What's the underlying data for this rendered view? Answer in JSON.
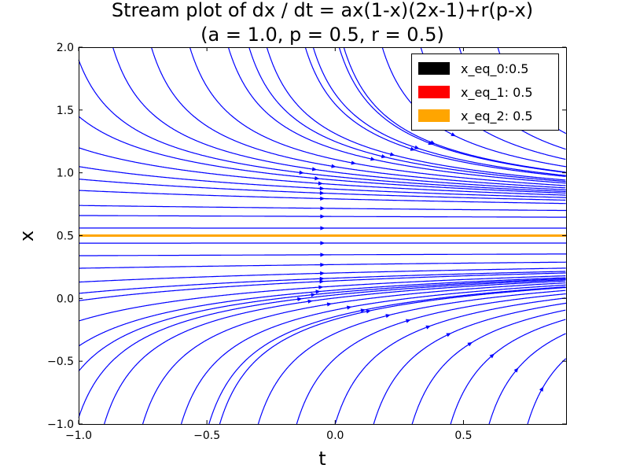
{
  "chart_data": {
    "type": "streamplot",
    "title_line1": "Stream plot of dx / dt = ax(1-x)(2x-1)+r(p-x)",
    "title_line2": "(a = 1.0, p = 0.5, r = 0.5)",
    "xlabel": "t",
    "ylabel": "x",
    "xlim": [
      -1.0,
      0.9
    ],
    "ylim": [
      -1.0,
      2.0
    ],
    "x_ticks": [
      -1.0,
      -0.5,
      0.0,
      0.5
    ],
    "x_tick_labels": [
      "−1.0",
      "−0.5",
      "0.0",
      "0.5"
    ],
    "y_ticks": [
      -1.0,
      -0.5,
      0.0,
      0.5,
      1.0,
      1.5,
      2.0
    ],
    "y_tick_labels": [
      "−1.0",
      "−0.5",
      "0.0",
      "0.5",
      "1.0",
      "1.5",
      "2.0"
    ],
    "grid": false,
    "legend_position": "upper right",
    "stream_color": "#0000ff",
    "params": {
      "a": 1.0,
      "p": 0.5,
      "r": 0.5
    },
    "equilibria": [
      {
        "name": "x_eq_0",
        "label": "x_eq_0:0.5",
        "value": 0.5,
        "color": "#000000"
      },
      {
        "name": "x_eq_1",
        "label": "x_eq_1: 0.5",
        "value": 0.5,
        "color": "#ff0000"
      },
      {
        "name": "x_eq_2",
        "label": "x_eq_2: 0.5",
        "value": 0.5,
        "color": "#ffa500"
      }
    ],
    "seeds": [
      [
        -1.0,
        1.9
      ],
      [
        -0.85,
        1.9
      ],
      [
        -0.7,
        1.9
      ],
      [
        -0.55,
        1.9
      ],
      [
        -0.4,
        1.9
      ],
      [
        -0.25,
        1.9
      ],
      [
        -0.1,
        1.9
      ],
      [
        0.05,
        1.9
      ],
      [
        0.2,
        1.9
      ],
      [
        0.35,
        1.9
      ],
      [
        0.5,
        1.9
      ],
      [
        0.65,
        1.9
      ],
      [
        -1.0,
        1.45
      ],
      [
        -1.0,
        1.2
      ],
      [
        -1.0,
        1.05
      ],
      [
        -1.0,
        0.95
      ],
      [
        -1.0,
        0.86
      ],
      [
        0.25,
        1.1
      ],
      [
        0.5,
        1.1
      ],
      [
        0.65,
        1.08
      ],
      [
        -1.0,
        0.74
      ],
      [
        -1.0,
        0.66
      ],
      [
        -1.0,
        0.56
      ],
      [
        -1.0,
        0.44
      ],
      [
        -1.0,
        0.34
      ],
      [
        -1.0,
        0.24
      ],
      [
        -1.0,
        0.13
      ],
      [
        -1.0,
        0.04
      ],
      [
        0.0,
        0.14
      ],
      [
        0.4,
        0.0
      ],
      [
        -1.0,
        -0.18
      ],
      [
        -1.0,
        -0.38
      ],
      [
        -1.0,
        -0.58
      ],
      [
        -1.0,
        -0.95
      ],
      [
        -0.9,
        -1.0
      ],
      [
        -0.75,
        -1.0
      ],
      [
        -0.6,
        -1.0
      ],
      [
        -0.45,
        -1.0
      ],
      [
        -0.3,
        -1.0
      ],
      [
        -0.15,
        -1.0
      ],
      [
        0.0,
        -1.0
      ],
      [
        0.15,
        -1.0
      ],
      [
        0.3,
        -1.0
      ],
      [
        0.45,
        -1.0
      ],
      [
        0.6,
        -1.0
      ],
      [
        0.75,
        -1.0
      ]
    ]
  }
}
